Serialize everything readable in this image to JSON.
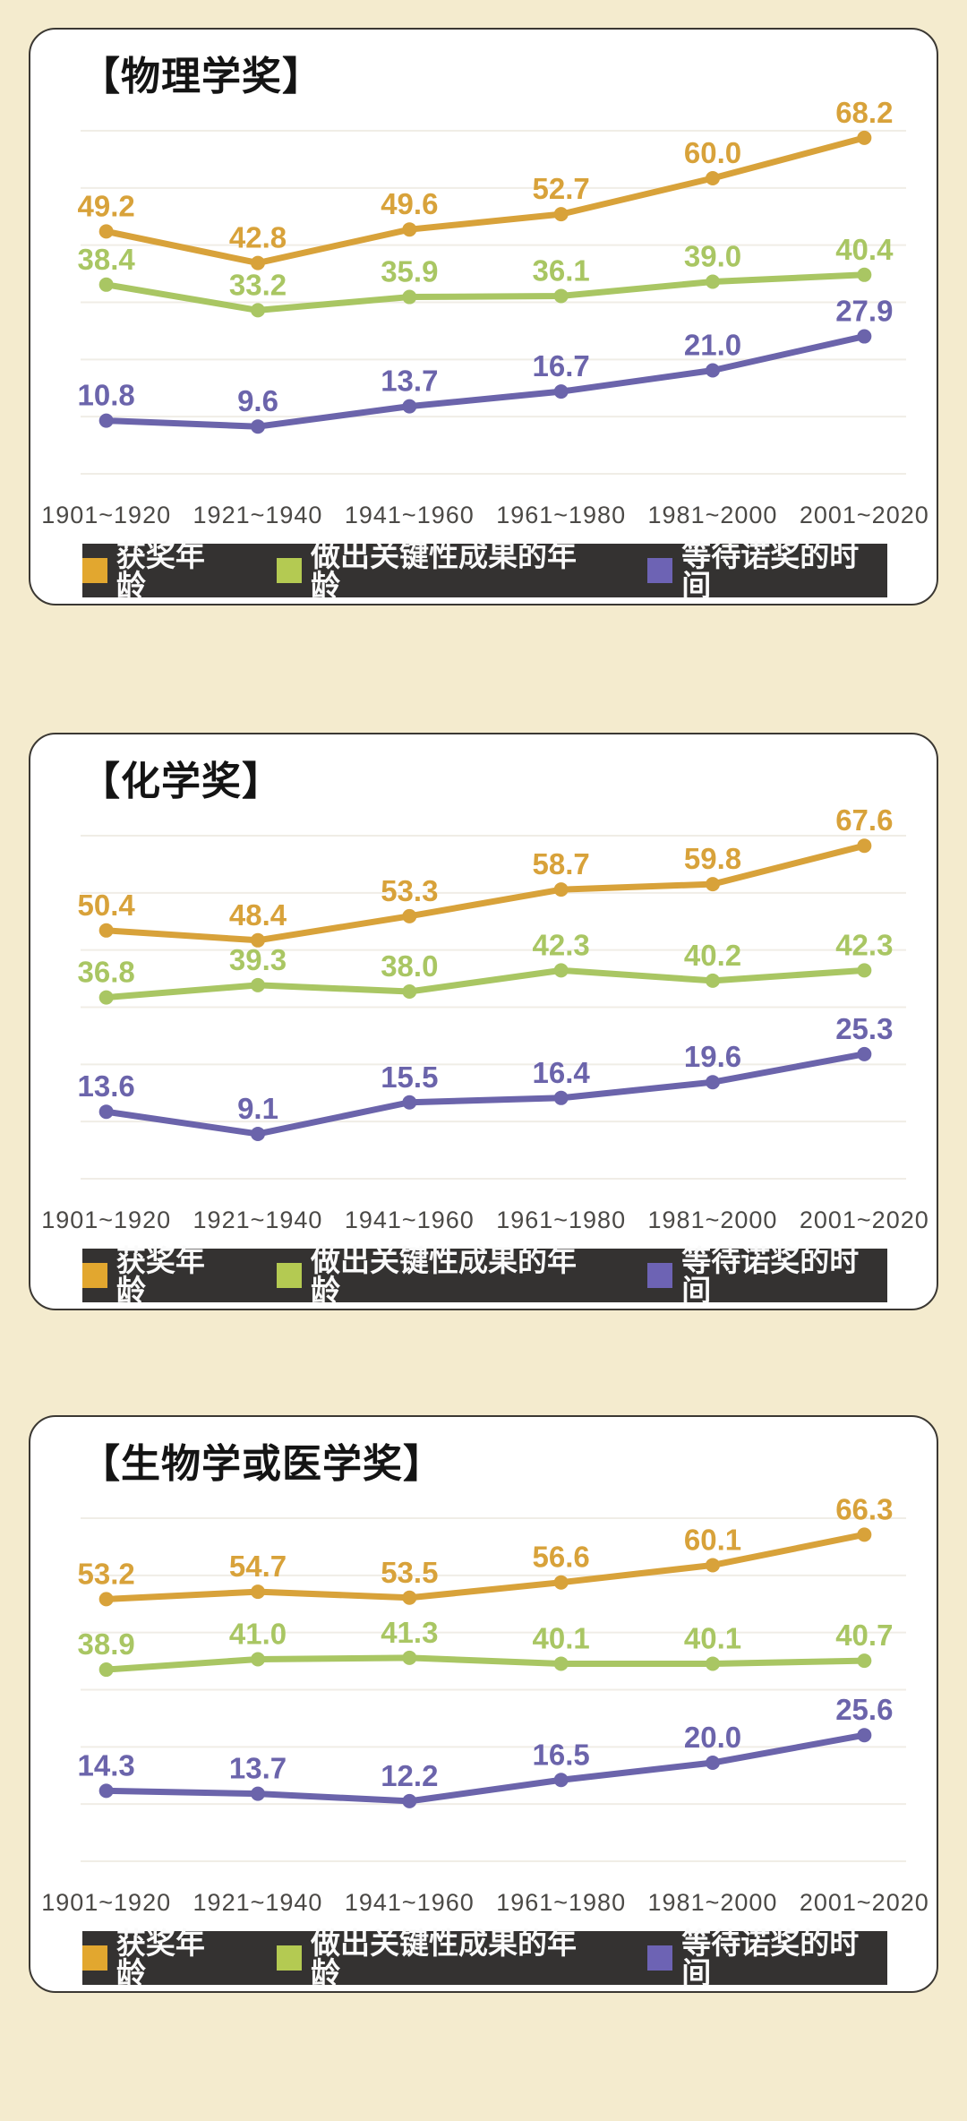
{
  "page": {
    "background_color": "#F4EBCE",
    "card_background": "#FFFFFF",
    "card_border_color": "#3B3833",
    "legend_background": "#343231",
    "gridline_color": "#F0EDE6",
    "axis_label_color": "#4B4946"
  },
  "chart_data": [
    {
      "type": "line",
      "title": "【物理学奖】",
      "categories": [
        "1901~1920",
        "1921~1940",
        "1941~1960",
        "1961~1980",
        "1981~2000",
        "2001~2020"
      ],
      "series": [
        {
          "name": "获奖年龄",
          "color": "#D8A23A",
          "legend_color": "#E2A72F",
          "values": [
            49.2,
            42.8,
            49.6,
            52.7,
            60.0,
            68.2
          ]
        },
        {
          "name": "做出关键性成果的年龄",
          "color": "#A9C663",
          "legend_color": "#B4CA52",
          "values": [
            38.4,
            33.2,
            35.9,
            36.1,
            39.0,
            40.4
          ]
        },
        {
          "name": "等待诺奖的时间",
          "color": "#6B64AB",
          "legend_color": "#6D63B4",
          "values": [
            10.8,
            9.6,
            13.7,
            16.7,
            21.0,
            27.9
          ]
        }
      ],
      "ylim": [
        0,
        75
      ],
      "grid": true,
      "legend_position": "bottom",
      "value_labels": true
    },
    {
      "type": "line",
      "title": "【化学奖】",
      "categories": [
        "1901~1920",
        "1921~1940",
        "1941~1960",
        "1961~1980",
        "1981~2000",
        "2001~2020"
      ],
      "series": [
        {
          "name": "获奖年龄",
          "color": "#D8A23A",
          "legend_color": "#E2A72F",
          "values": [
            50.4,
            48.4,
            53.3,
            58.7,
            59.8,
            67.6
          ]
        },
        {
          "name": "做出关键性成果的年龄",
          "color": "#A9C663",
          "legend_color": "#B4CA52",
          "values": [
            36.8,
            39.3,
            38.0,
            42.3,
            40.2,
            42.3
          ]
        },
        {
          "name": "等待诺奖的时间",
          "color": "#6B64AB",
          "legend_color": "#6D63B4",
          "values": [
            13.6,
            9.1,
            15.5,
            16.4,
            19.6,
            25.3
          ]
        }
      ],
      "ylim": [
        0,
        75
      ],
      "grid": true,
      "legend_position": "bottom",
      "value_labels": true
    },
    {
      "type": "line",
      "title": "【生物学或医学奖】",
      "categories": [
        "1901~1920",
        "1921~1940",
        "1941~1960",
        "1961~1980",
        "1981~2000",
        "2001~2020"
      ],
      "series": [
        {
          "name": "获奖年龄",
          "color": "#D8A23A",
          "legend_color": "#E2A72F",
          "values": [
            53.2,
            54.7,
            53.5,
            56.6,
            60.1,
            66.3
          ]
        },
        {
          "name": "做出关键性成果的年龄",
          "color": "#A9C663",
          "legend_color": "#B4CA52",
          "values": [
            38.9,
            41.0,
            41.3,
            40.1,
            40.1,
            40.7
          ]
        },
        {
          "name": "等待诺奖的时间",
          "color": "#6B64AB",
          "legend_color": "#6D63B4",
          "values": [
            14.3,
            13.7,
            12.2,
            16.5,
            20.0,
            25.6
          ]
        }
      ],
      "ylim": [
        0,
        75
      ],
      "grid": true,
      "legend_position": "bottom",
      "value_labels": true
    }
  ]
}
